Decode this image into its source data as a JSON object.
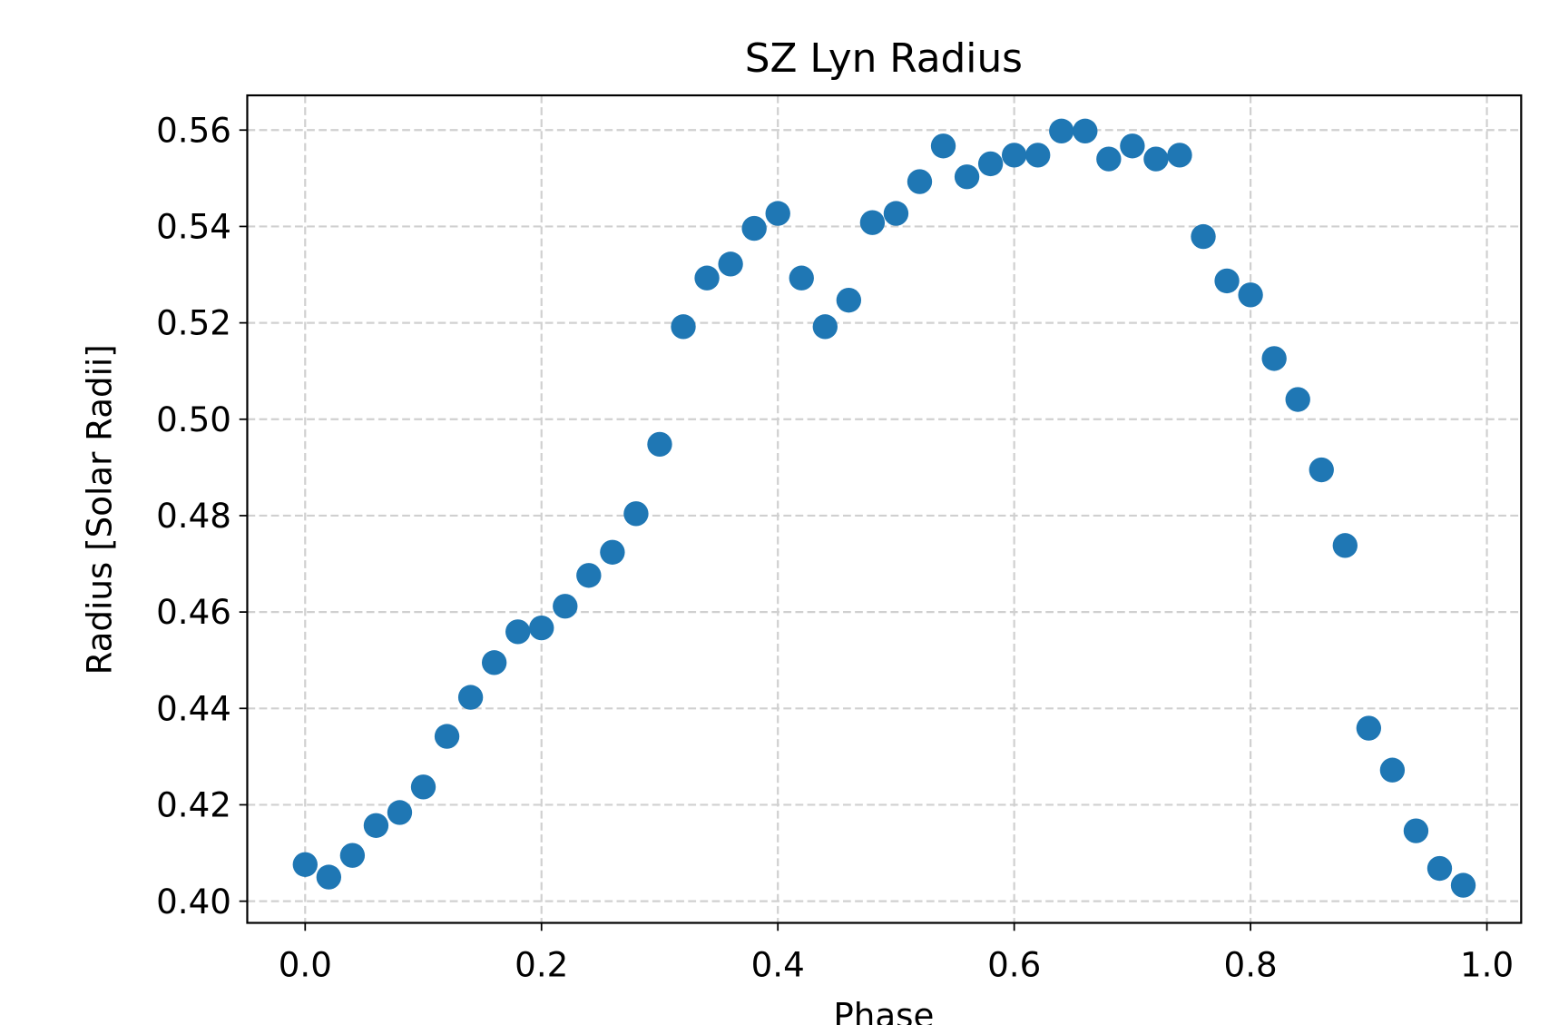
{
  "chart_data": {
    "type": "scatter",
    "title": "SZ Lyn Radius",
    "xlabel": "Phase",
    "ylabel": "Radius [Solar Radii]",
    "x": [
      0,
      0.02,
      0.04,
      0.06,
      0.08,
      0.1,
      0.12,
      0.14,
      0.16,
      0.18,
      0.2,
      0.22,
      0.24,
      0.26,
      0.28,
      0.3,
      0.32,
      0.34,
      0.36,
      0.38,
      0.4,
      0.42,
      0.44,
      0.46,
      0.48,
      0.5,
      0.52,
      0.54,
      0.56,
      0.58,
      0.6,
      0.62,
      0.64,
      0.66,
      0.68,
      0.7,
      0.72,
      0.74,
      0.76,
      0.78,
      0.8,
      0.82,
      0.84,
      0.86,
      0.88,
      0.9,
      0.92,
      0.94,
      0.96,
      0.98
    ],
    "values": [
      0.4076,
      0.405,
      0.4095,
      0.4157,
      0.4184,
      0.4237,
      0.4342,
      0.4423,
      0.4495,
      0.4559,
      0.4567,
      0.4612,
      0.4676,
      0.4724,
      0.4804,
      0.4948,
      0.5192,
      0.5293,
      0.5322,
      0.5396,
      0.5427,
      0.5293,
      0.5192,
      0.5247,
      0.5408,
      0.5427,
      0.5493,
      0.5567,
      0.5503,
      0.553,
      0.5548,
      0.5548,
      0.5598,
      0.5598,
      0.554,
      0.5567,
      0.554,
      0.5548,
      0.5379,
      0.5287,
      0.5258,
      0.5126,
      0.5041,
      0.4895,
      0.4738,
      0.4359,
      0.4272,
      0.4146,
      0.4068,
      0.4033
    ],
    "color": "#1f77b4",
    "xlim": [
      -0.049,
      1.029
    ],
    "ylim": [
      0.3955,
      0.5672
    ],
    "xticks": [
      {
        "value": 0,
        "label": "0.0"
      },
      0.2,
      0.4,
      0.6,
      0.8,
      {
        "value": 1,
        "label": "1.0"
      }
    ],
    "yticks": [
      {
        "value": 0.4,
        "label": "0.40"
      },
      0.42,
      0.44,
      0.46,
      0.48,
      {
        "value": 0.5,
        "label": "0.50"
      },
      0.52,
      0.54,
      0.56
    ],
    "grid": true
  }
}
